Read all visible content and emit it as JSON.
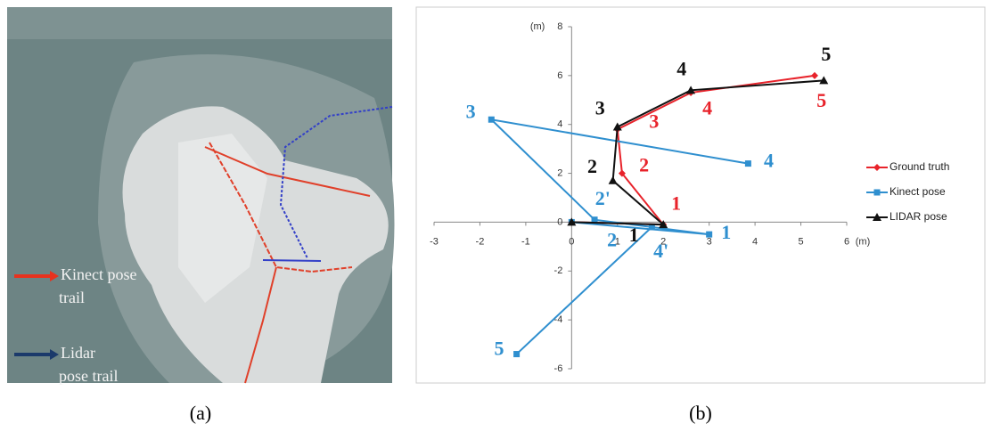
{
  "panel_a": {
    "legend": [
      {
        "lines": [
          "Kinect pose",
          "trail"
        ],
        "color": "#e8321e"
      },
      {
        "lines": [
          "Lidar",
          "pose trail"
        ],
        "color": "#1b3a6b"
      }
    ]
  },
  "captions": [
    "(a)",
    "(b)"
  ],
  "chart_data": {
    "type": "line",
    "x_label": "(m)",
    "y_label": "(m)",
    "xlim": [
      -3,
      6
    ],
    "ylim": [
      -6,
      8
    ],
    "xticks": [
      -3,
      -2,
      -1,
      0,
      1,
      2,
      3,
      4,
      5,
      6
    ],
    "yticks": [
      -6,
      -4,
      -2,
      0,
      2,
      4,
      6,
      8
    ],
    "legend": "right",
    "series": [
      {
        "name": "Ground truth",
        "color": "#e8232b",
        "marker": "diamond",
        "x": [
          0,
          2,
          1.1,
          1,
          2.6,
          5.3
        ],
        "values": [
          0,
          -0.1,
          2,
          3.8,
          5.3,
          6
        ]
      },
      {
        "name": "Kinect pose",
        "color": "#2f8fcf",
        "marker": "square",
        "x": [
          0,
          3,
          0.5,
          -1.75,
          3.85,
          null,
          1.75,
          -1.2
        ],
        "values": [
          0,
          -0.5,
          0.1,
          4.2,
          2.4,
          null,
          -0.2,
          -5.4
        ]
      },
      {
        "name": "LIDAR pose",
        "color": "#111111",
        "marker": "triangle",
        "x": [
          0,
          2,
          0.9,
          1,
          2.6,
          5.5
        ],
        "values": [
          0,
          -0.1,
          1.7,
          3.9,
          5.4,
          5.8
        ]
      }
    ],
    "annotations": [
      {
        "text": "1",
        "x": 1.36,
        "y": -0.6,
        "color": "#111111"
      },
      {
        "text": "2",
        "x": 0.45,
        "y": 2.2,
        "color": "#111111"
      },
      {
        "text": "3",
        "x": 0.62,
        "y": 4.6,
        "color": "#111111"
      },
      {
        "text": "4",
        "x": 2.4,
        "y": 6.2,
        "color": "#111111"
      },
      {
        "text": "5",
        "x": 5.55,
        "y": 6.8,
        "color": "#111111"
      },
      {
        "text": "1",
        "x": 2.28,
        "y": 0.7,
        "color": "#e8232b"
      },
      {
        "text": "2",
        "x": 1.58,
        "y": 2.26,
        "color": "#e8232b"
      },
      {
        "text": "3",
        "x": 1.8,
        "y": 4.05,
        "color": "#e8232b"
      },
      {
        "text": "4",
        "x": 2.96,
        "y": 4.6,
        "color": "#e8232b"
      },
      {
        "text": "5",
        "x": 5.45,
        "y": 4.9,
        "color": "#e8232b"
      },
      {
        "text": "1",
        "x": 3.37,
        "y": -0.5,
        "color": "#2f8fcf"
      },
      {
        "text": "2",
        "x": 0.88,
        "y": -0.8,
        "color": "#2f8fcf"
      },
      {
        "text": "2'",
        "x": 0.68,
        "y": 0.9,
        "color": "#2f8fcf"
      },
      {
        "text": "3",
        "x": -2.2,
        "y": 4.45,
        "color": "#2f8fcf"
      },
      {
        "text": "4",
        "x": 4.3,
        "y": 2.45,
        "color": "#2f8fcf"
      },
      {
        "text": "4'",
        "x": 1.95,
        "y": -1.25,
        "color": "#2f8fcf"
      },
      {
        "text": "5",
        "x": -1.58,
        "y": -5.25,
        "color": "#2f8fcf"
      }
    ]
  }
}
